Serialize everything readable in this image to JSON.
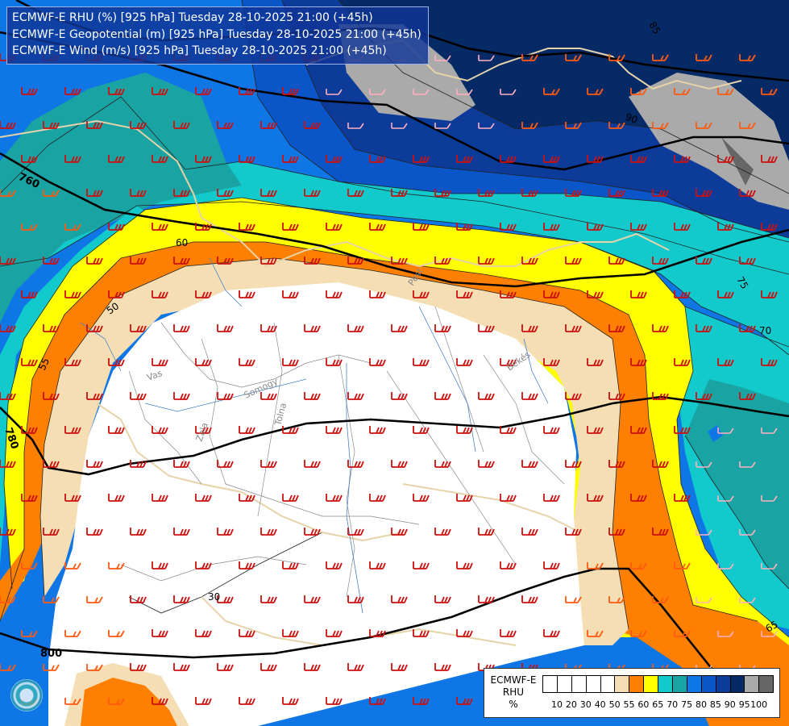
{
  "title_lines": [
    "ECMWF-E RHU (%) [925 hPa] Tuesday 28-10-2025 21:00 (+45h)",
    "ECMWF-E Geopotential (m) [925 hPa] Tuesday 28-10-2025 21:00 (+45h)",
    "ECMWF-E Wind (m/s) [925 hPa] Tuesday 28-10-2025 21:00 (+45h)"
  ],
  "legend": {
    "title_lines": [
      "ECMWF-E",
      "RHU",
      "%"
    ],
    "ticks": [
      "10",
      "20",
      "30",
      "40",
      "50",
      "55",
      "60",
      "65",
      "70",
      "75",
      "80",
      "85",
      "90",
      "95",
      "100"
    ],
    "colors": [
      "#ffffff",
      "#ffffff",
      "#ffffff",
      "#ffffff",
      "#ffffff",
      "#f5deb3",
      "#ff8000",
      "#ffff00",
      "#12c9cc",
      "#1aa3a3",
      "#0f76e6",
      "#0a55c8",
      "#0c3b9a",
      "#062a66",
      "#aaaaaa",
      "#666666"
    ]
  },
  "geopotential_labels": [
    "760",
    "780",
    "800"
  ],
  "rhu_contour_labels": [
    "30",
    "50",
    "55",
    "60",
    "65",
    "70",
    "75",
    "85",
    "90"
  ],
  "region_labels": [
    "Vas",
    "Zala",
    "Somogy",
    "Tolna",
    "Békés",
    "Pest"
  ],
  "colors": {
    "white": "#ffffff",
    "wheat": "#f5deb3",
    "orange": "#ff8000",
    "yellow": "#ffff00",
    "cyan": "#12c9cc",
    "teal": "#1aa3a3",
    "blue1": "#0f76e6",
    "blue2": "#0a55c8",
    "blue3": "#0c3b9a",
    "navy": "#062a66",
    "grey": "#aaaaaa",
    "darkgrey": "#666666",
    "border": "#e6d3a8",
    "river": "#4a80c8",
    "wind_red": "#cc1010",
    "wind_orange": "#ff5a10",
    "wind_pink": "#ffb0c0"
  }
}
